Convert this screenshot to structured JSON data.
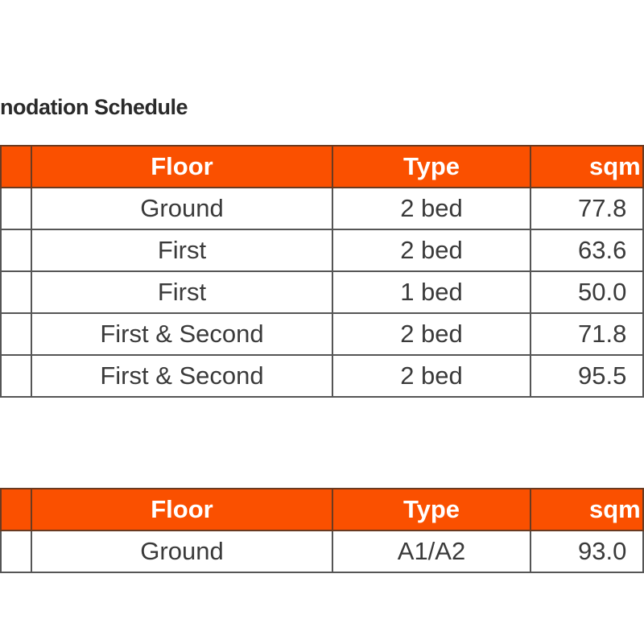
{
  "title": "nodation Schedule",
  "accent_color": "#fa5000",
  "table1": {
    "headers": [
      "",
      "Floor",
      "Type",
      "sqm"
    ],
    "rows": [
      [
        "",
        "Ground",
        "2 bed",
        "77.8"
      ],
      [
        "",
        "First",
        "2 bed",
        "63.6"
      ],
      [
        "",
        "First",
        "1 bed",
        "50.0"
      ],
      [
        "",
        "First & Second",
        "2 bed",
        "71.8"
      ],
      [
        "",
        "First & Second",
        "2 bed",
        "95.5"
      ]
    ]
  },
  "table2": {
    "headers": [
      "",
      "Floor",
      "Type",
      "sqm"
    ],
    "rows": [
      [
        "",
        "Ground",
        "A1/A2",
        "93.0"
      ]
    ]
  }
}
